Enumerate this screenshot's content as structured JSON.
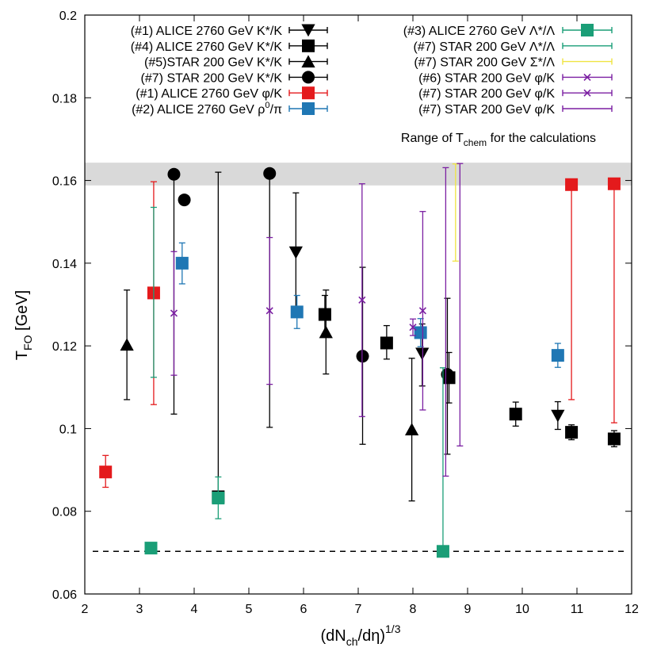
{
  "chart_data": {
    "type": "scatter",
    "xlabel": "(dN",
    "xlabel_sub": "ch",
    "xlabel_mid": "/dη)",
    "xlabel_sup": "1/3",
    "ylabel": "T",
    "ylabel_sub": "FO",
    "ylabel_unit": " [GeV]",
    "xlim": [
      2,
      12
    ],
    "ylim": [
      0.06,
      0.2
    ],
    "xticks": [
      2,
      3,
      4,
      5,
      6,
      7,
      8,
      9,
      10,
      11,
      12
    ],
    "yticks": [
      0.06,
      0.08,
      0.1,
      0.12,
      0.14,
      0.16,
      0.18,
      0.2
    ],
    "ytick_labels": [
      "0.06",
      "0.08",
      "0.1",
      "0.12",
      "0.14",
      "0.16",
      "0.18",
      "0.2"
    ],
    "band": {
      "y1": 0.1588,
      "y2": 0.1643,
      "color": "#d9d9d9",
      "label_pre": "Range of T",
      "label_sub": "chem",
      "label_post": " for the calculations"
    },
    "hline": {
      "y": 0.0703,
      "style": "dashed"
    },
    "series": [
      {
        "name": "(#1) ALICE 2760 GeV K*/K",
        "label": "(#1) ALICE 2760 GeV K*/K",
        "marker": "tri-down",
        "color": "#000000",
        "column": "left",
        "points": [
          {
            "x": 5.86,
            "y": 0.1426,
            "lo": 0.1272,
            "hi": 0.157
          },
          {
            "x": 8.17,
            "y": 0.1181,
            "lo": 0.1103,
            "hi": 0.1253
          },
          {
            "x": 10.65,
            "y": 0.1031,
            "lo": 0.0998,
            "hi": 0.1065
          }
        ]
      },
      {
        "name": "(#4) ALICE 2760 GeV K*/K",
        "label": "(#4) ALICE 2760 GeV K*/K",
        "marker": "square",
        "color": "#000000",
        "column": "left",
        "points": [
          {
            "x": 4.44,
            "y": 0.0835,
            "lo": 0.0826,
            "hi": 0.162
          },
          {
            "x": 6.39,
            "y": 0.1276,
            "lo": 0.123,
            "hi": 0.1322
          },
          {
            "x": 7.52,
            "y": 0.1207,
            "lo": 0.1168,
            "hi": 0.1249
          },
          {
            "x": 8.66,
            "y": 0.1123,
            "lo": 0.1062,
            "hi": 0.1184
          },
          {
            "x": 9.88,
            "y": 0.1035,
            "lo": 0.1006,
            "hi": 0.1064
          },
          {
            "x": 10.9,
            "y": 0.0991,
            "lo": 0.0973,
            "hi": 0.1009
          },
          {
            "x": 11.68,
            "y": 0.0975,
            "lo": 0.0956,
            "hi": 0.0995
          }
        ]
      },
      {
        "name": "(#5)STAR 200 GeV K*/K",
        "label": "(#5)STAR 200 GeV K*/K",
        "marker": "tri-up",
        "color": "#000000",
        "column": "left",
        "points": [
          {
            "x": 2.77,
            "y": 0.1203,
            "lo": 0.107,
            "hi": 0.1335
          },
          {
            "x": 6.41,
            "y": 0.1233,
            "lo": 0.1132,
            "hi": 0.1335
          },
          {
            "x": 7.98,
            "y": 0.0998,
            "lo": 0.0825,
            "hi": 0.117
          }
        ]
      },
      {
        "name": "(#7) STAR 200 GeV K*/K",
        "label": "(#7) STAR 200 GeV K*/K",
        "marker": "circle",
        "color": "#000000",
        "column": "left",
        "points": [
          {
            "x": 3.63,
            "y": 0.1615,
            "lo": 0.1035,
            "hi": 0.1615
          },
          {
            "x": 5.38,
            "y": 0.1617,
            "lo": 0.1003,
            "hi": 0.1617
          },
          {
            "x": 7.08,
            "y": 0.1175,
            "lo": 0.0962,
            "hi": 0.139
          },
          {
            "x": 8.63,
            "y": 0.1131,
            "lo": 0.0938,
            "hi": 0.1315
          },
          {
            "x": 3.82,
            "y": 0.1553,
            "lo": 0.1544,
            "hi": 0.1562
          }
        ]
      },
      {
        "name": "(#1) ALICE 2760 GeV φ/K",
        "label": "(#1) ALICE 2760 GeV φ/K",
        "marker": "square",
        "color": "#e41a1c",
        "column": "left",
        "points": [
          {
            "x": 2.38,
            "y": 0.0895,
            "lo": 0.0858,
            "hi": 0.0935
          },
          {
            "x": 3.26,
            "y": 0.1328,
            "lo": 0.1058,
            "hi": 0.1597
          },
          {
            "x": 10.9,
            "y": 0.159,
            "lo": 0.107,
            "hi": 0.159
          },
          {
            "x": 11.68,
            "y": 0.1592,
            "lo": 0.1014,
            "hi": 0.1592
          }
        ]
      },
      {
        "name": "(#2) ALICE 2760 GeV ρ0/π",
        "label": "(#2) ALICE 2760 GeV ρ",
        "label_sup": "0",
        "label_post": "/π",
        "marker": "square",
        "color": "#1f77b4",
        "column": "left",
        "points": [
          {
            "x": 3.78,
            "y": 0.14,
            "lo": 0.135,
            "hi": 0.1449
          },
          {
            "x": 5.88,
            "y": 0.1282,
            "lo": 0.1242,
            "hi": 0.1322
          },
          {
            "x": 8.14,
            "y": 0.1232,
            "lo": 0.1198,
            "hi": 0.1266
          },
          {
            "x": 10.65,
            "y": 0.1177,
            "lo": 0.1148,
            "hi": 0.1206
          }
        ]
      },
      {
        "name": "(#3) ALICE 2760 GeV Λ*/Λ",
        "label": "(#3) ALICE 2760 GeV Λ*/Λ",
        "marker": "square",
        "color": "#1a9e77",
        "column": "right",
        "points": [
          {
            "x": 4.44,
            "y": 0.0832,
            "lo": 0.0782,
            "hi": 0.0883
          },
          {
            "x": 3.21,
            "y": 0.0711,
            "lo": 0.0702,
            "hi": 0.072
          },
          {
            "x": 8.55,
            "y": 0.0703,
            "lo": 0.0703,
            "hi": 0.1147
          }
        ]
      },
      {
        "name": "(#7) STAR 200 GeV Λ*/Λ",
        "label": "(#7) STAR 200 GeV Λ*/Λ",
        "marker": "none",
        "color": "#1a9e77",
        "column": "right",
        "points": [
          {
            "x": 3.26,
            "y": 0.1327,
            "lo": 0.1124,
            "hi": 0.1535
          }
        ]
      },
      {
        "name": "(#7) STAR 200 GeV Σ*/Λ",
        "label": "(#7) STAR 200 GeV Σ*/Λ",
        "marker": "none",
        "color": "#f0e442",
        "column": "right",
        "points": [
          {
            "x": 8.78,
            "y": 0.164,
            "lo": 0.1405,
            "hi": 0.164
          }
        ]
      },
      {
        "name": "(#6) STAR 200 GeV φ/K",
        "label": "(#6) STAR 200 GeV φ/K",
        "marker": "cross",
        "color": "#7b1fa2",
        "column": "right",
        "points": [
          {
            "x": 3.63,
            "y": 0.1279,
            "lo": 0.1129,
            "hi": 0.1428
          },
          {
            "x": 8.0,
            "y": 0.1245,
            "lo": 0.1225,
            "hi": 0.1265
          }
        ]
      },
      {
        "name": "(#7) STAR 200 GeV φ/K",
        "label": "(#7) STAR 200 GeV φ/K",
        "marker": "cross",
        "color": "#7b1fa2",
        "column": "right",
        "points": [
          {
            "x": 5.38,
            "y": 0.1285,
            "lo": 0.1107,
            "hi": 0.1462
          },
          {
            "x": 7.07,
            "y": 0.1311,
            "lo": 0.1029,
            "hi": 0.1592
          },
          {
            "x": 8.18,
            "y": 0.1285,
            "lo": 0.1045,
            "hi": 0.1525
          }
        ]
      },
      {
        "name": "(#7) STAR 200 GeV φ/K (bars)",
        "label": "(#7) STAR 200 GeV φ/K",
        "marker": "none",
        "color": "#7b1fa2",
        "column": "right",
        "points": [
          {
            "x": 8.6,
            "y": 0.1258,
            "lo": 0.0885,
            "hi": 0.1631
          },
          {
            "x": 8.86,
            "y": 0.1299,
            "lo": 0.0958,
            "hi": 0.1641
          }
        ]
      }
    ]
  }
}
